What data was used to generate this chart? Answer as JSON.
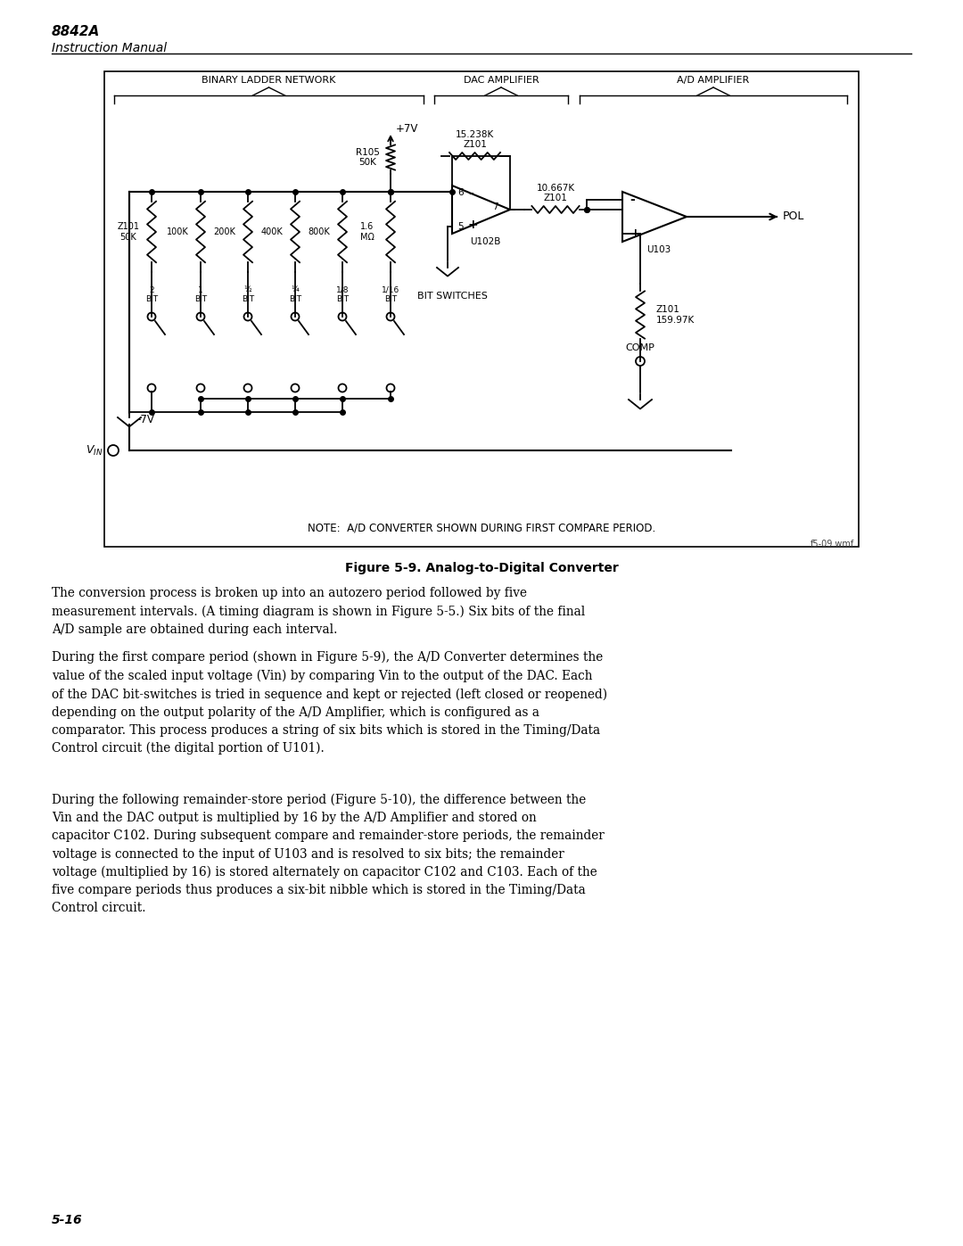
{
  "title_bold": "8842A",
  "title_sub": "Instruction Manual",
  "figure_caption": "Figure 5-9. Analog-to-Digital Converter",
  "page_number": "5-16",
  "note_text": "NOTE:  A/D CONVERTER SHOWN DURING FIRST COMPARE PERIOD.",
  "file_tag": "f5-09.wmf",
  "section_labels": [
    "BINARY LADDER NETWORK",
    "DAC AMPLIFIER",
    "A/D AMPLIFIER"
  ],
  "para1": "The conversion process is broken up into an autozero period followed by five\nmeasurement intervals. (A timing diagram is shown in Figure 5-5.) Six bits of the final\nA/D sample are obtained during each interval.",
  "para2": "During the first compare period (shown in Figure 5-9), the A/D Converter determines the\nvalue of the scaled input voltage (Vin) by comparing Vin to the output of the DAC. Each\nof the DAC bit-switches is tried in sequence and kept or rejected (left closed or reopened)\ndepending on the output polarity of the A/D Amplifier, which is configured as a\ncomparator. This process produces a string of six bits which is stored in the Timing/Data\nControl circuit (the digital portion of U101).",
  "para3": "During the following remainder-store period (Figure 5-10), the difference between the\nVin and the DAC output is multiplied by 16 by the A/D Amplifier and stored on\ncapacitor C102. During subsequent compare and remainder-store periods, the remainder\nvoltage is connected to the input of U103 and is resolved to six bits; the remainder\nvoltage (multiplied by 16) is stored alternately on capacitor C102 and C103. Each of the\nfive compare periods thus produces a six-bit nibble which is stored in the Timing/Data\nControl circuit.",
  "bg_color": "#ffffff",
  "text_color": "#000000"
}
